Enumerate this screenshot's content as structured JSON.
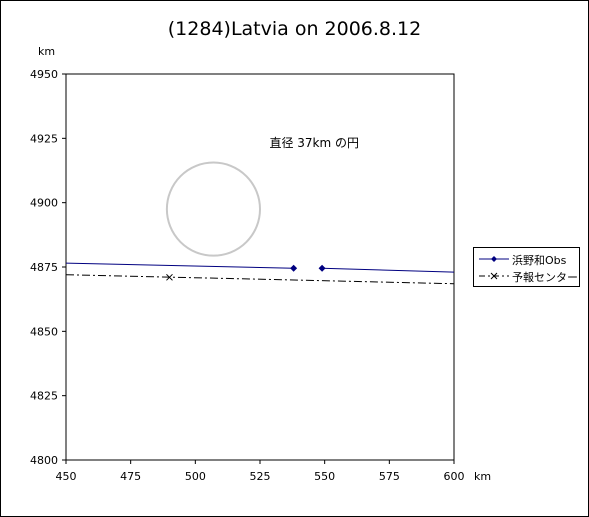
{
  "chart_data": {
    "type": "line",
    "title": "(1284)Latvia on 2006.8.12",
    "xlabel": "km",
    "ylabel": "km",
    "xlim": [
      450,
      600
    ],
    "ylim": [
      4800,
      4950
    ],
    "xticks": [
      "450",
      "475",
      "500",
      "525",
      "550",
      "575",
      "600"
    ],
    "yticks": [
      "4950",
      "4925",
      "4900",
      "4875",
      "4850",
      "4825",
      "4800"
    ],
    "annotation": "直径 37km の円",
    "circle": {
      "cx": 507,
      "cy": 4897.5,
      "r": 18
    },
    "series": [
      {
        "name": "浜野和Obs",
        "color": "#000080",
        "style": "solid",
        "segments": [
          [
            [
              450,
              4876.5
            ],
            [
              538,
              4874.5
            ]
          ],
          [
            [
              549,
              4874.5
            ],
            [
              600,
              4873
            ]
          ]
        ],
        "markers": [
          [
            538,
            4874.5
          ],
          [
            549,
            4874.5
          ]
        ]
      },
      {
        "name": "予報センター",
        "color": "#000000",
        "style": "dash-dot",
        "points": [
          [
            450,
            4872
          ],
          [
            600,
            4868.5
          ]
        ],
        "markers": [
          [
            490,
            4871
          ]
        ]
      }
    ]
  }
}
